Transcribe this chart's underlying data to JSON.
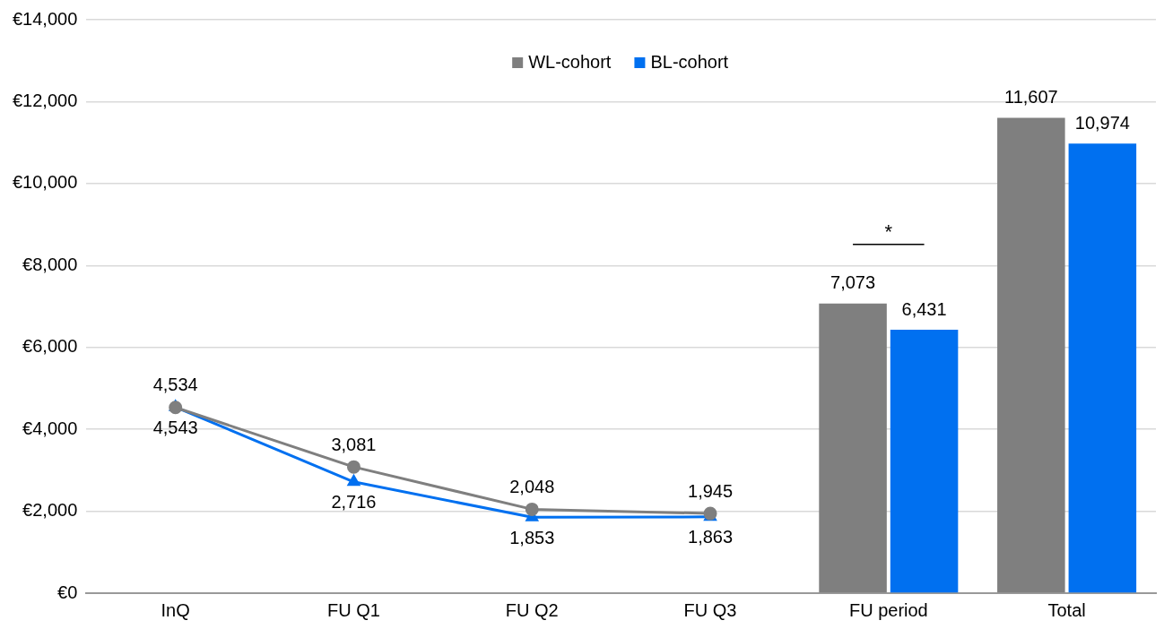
{
  "chart_data": {
    "type": "bar",
    "categories": [
      "InQ",
      "FU Q1",
      "FU Q2",
      "FU Q3",
      "FU period",
      "Total"
    ],
    "series": [
      {
        "type": "line",
        "color": "#7f7f7f",
        "marker": "circle",
        "values": [
          4534,
          3081,
          2048,
          1945,
          null,
          null
        ],
        "value_labels": [
          "4,534",
          "3,081",
          "2,048",
          "1,945",
          null,
          null
        ]
      },
      {
        "type": "line",
        "color": "#0070f0",
        "marker": "triangle",
        "values": [
          4543,
          2716,
          1853,
          1863,
          null,
          null
        ],
        "value_labels": [
          "4,543",
          "2,716",
          "1,853",
          "1,863",
          null,
          null
        ]
      },
      {
        "name": "WL-cohort",
        "color": "#7f7f7f",
        "values": [
          null,
          null,
          null,
          null,
          7073,
          11607
        ],
        "value_labels": [
          null,
          null,
          null,
          null,
          "7,073",
          "11,607"
        ]
      },
      {
        "name": "BL-cohort",
        "color": "#0070f0",
        "values": [
          null,
          null,
          null,
          null,
          6431,
          10974
        ],
        "value_labels": [
          null,
          null,
          null,
          null,
          "6,431",
          "10,974"
        ]
      }
    ],
    "ylim": [
      0,
      14000
    ],
    "yticks": [
      {
        "value": 0,
        "label": "€0"
      },
      {
        "value": 2000,
        "label": "€2,000"
      },
      {
        "value": 4000,
        "label": "€4,000"
      },
      {
        "value": 6000,
        "label": "€6,000"
      },
      {
        "value": 8000,
        "label": "€8,000"
      },
      {
        "value": 10000,
        "label": "€10,000"
      },
      {
        "value": 12000,
        "label": "€12,000"
      },
      {
        "value": 14000,
        "label": "€14,000"
      }
    ],
    "annotations": [
      "*"
    ],
    "grid": "y",
    "legend": "top"
  }
}
